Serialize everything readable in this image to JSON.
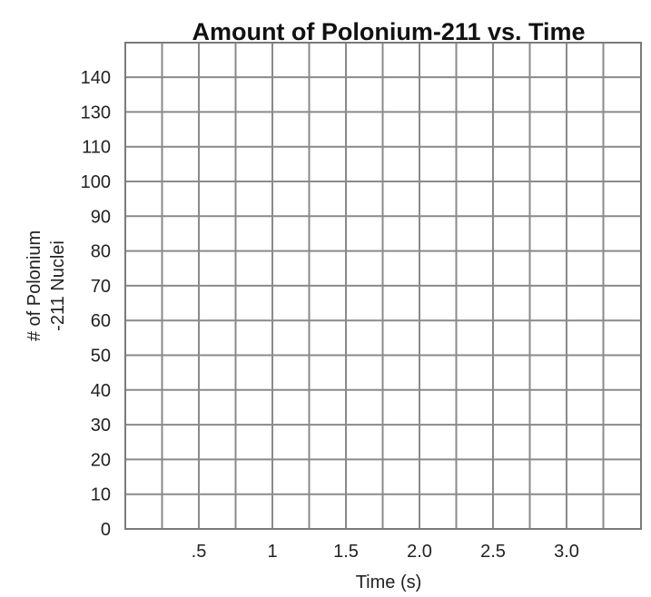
{
  "chart_data": {
    "type": "line",
    "title": "Amount of Polonium-211 vs. Time",
    "xlabel": "Time (s)",
    "ylabel_lines": [
      "# of Polonium",
      "-211 Nuclei"
    ],
    "x_tick_labels": [
      ".5",
      "1",
      "1.5",
      "2.0",
      "2.5",
      "3.0"
    ],
    "y_tick_labels": [
      "0",
      "10",
      "20",
      "30",
      "40",
      "50",
      "60",
      "70",
      "80",
      "90",
      "100",
      "110",
      "130",
      "140"
    ],
    "series": [],
    "grid": true,
    "colors": {
      "grid": "#8a8a8a",
      "border": "#7a7a7a",
      "text": "#222222"
    }
  }
}
